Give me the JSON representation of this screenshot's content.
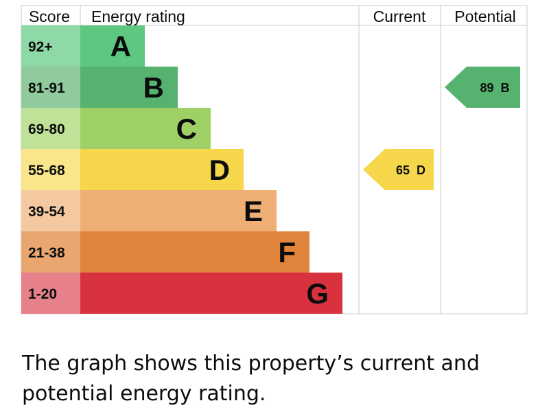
{
  "chart_data": {
    "type": "bar",
    "headers": {
      "score": "Score",
      "rating": "Energy rating",
      "current": "Current",
      "potential": "Potential"
    },
    "bands": [
      {
        "score": "1-20",
        "letter": "G",
        "color": "#d9323f",
        "score_color": "#e6808a"
      },
      {
        "score": "21-38",
        "letter": "F",
        "color": "#e1843b",
        "score_color": "#eaa66f"
      },
      {
        "score": "39-54",
        "letter": "E",
        "color": "#efae73",
        "score_color": "#f4c9a1"
      },
      {
        "score": "55-68",
        "letter": "D",
        "color": "#f6d64b",
        "score_color": "#fae58a"
      },
      {
        "score": "69-80",
        "letter": "C",
        "color": "#9fd065",
        "score_color": "#bfe298"
      },
      {
        "score": "81-91",
        "letter": "B",
        "color": "#56b26f",
        "score_color": "#8fcb9d"
      },
      {
        "score": "92+",
        "letter": "A",
        "color": "#5ec883",
        "score_color": "#8fd8a7"
      }
    ],
    "current": {
      "value": 65,
      "letter": "D",
      "label": "65  D",
      "color": "#f6d64b"
    },
    "potential": {
      "value": 89,
      "letter": "B",
      "label": "89  B",
      "color": "#56b26f"
    }
  },
  "caption": "The graph shows this property’s current and potential energy rating."
}
